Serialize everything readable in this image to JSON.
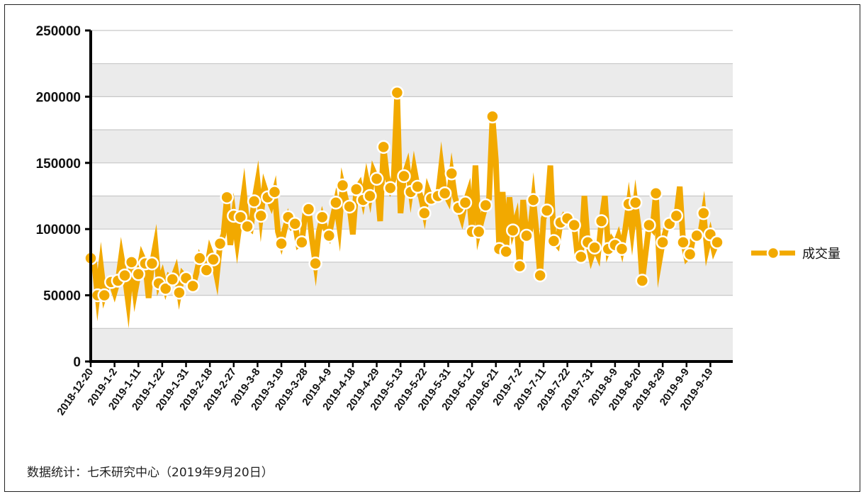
{
  "footnote": "数据统计：七禾研究中心（2019年9月20日）",
  "legend": {
    "label": "成交量"
  },
  "colors": {
    "series": "#F2A900",
    "band": "#EBEBEB",
    "gridline": "#C8C8C8",
    "axis": "#000000"
  },
  "chart_data": {
    "type": "line",
    "ylim": [
      0,
      250000
    ],
    "yticks": [
      0,
      50000,
      100000,
      150000,
      200000,
      250000
    ],
    "grid": true,
    "legend_position": "right",
    "xtick_labels": [
      "2018-12-20",
      "2019-1-2",
      "2019-1-11",
      "2019-1-22",
      "2019-1-31",
      "2019-2-18",
      "2019-2-27",
      "2019-3-8",
      "2019-3-19",
      "2019-3-28",
      "2019-4-9",
      "2019-4-18",
      "2019-4-29",
      "2019-5-13",
      "2019-5-22",
      "2019-5-31",
      "2019-6-12",
      "2019-6-21",
      "2019-7-2",
      "2019-7-11",
      "2019-7-22",
      "2019-7-31",
      "2019-8-9",
      "2019-8-20",
      "2019-8-29",
      "2019-9-9",
      "2019-9-19"
    ],
    "xtick_every": 7,
    "series": [
      {
        "name": "成交量",
        "marker_every": 2,
        "values": [
          78000,
          75000,
          50000,
          72000,
          50000,
          58000,
          60000,
          52000,
          61000,
          80000,
          65000,
          45000,
          75000,
          52000,
          66000,
          80000,
          74000,
          48000,
          74000,
          88000,
          59000,
          66000,
          55000,
          64000,
          62000,
          69000,
          52000,
          66000,
          63000,
          60000,
          57000,
          66000,
          78000,
          72000,
          69000,
          84000,
          77000,
          64000,
          89000,
          96000,
          124000,
          88000,
          110000,
          90000,
          109000,
          128000,
          102000,
          100000,
          121000,
          136000,
          110000,
          132000,
          124000,
          118000,
          128000,
          98000,
          89000,
          100000,
          109000,
          102000,
          104000,
          88000,
          90000,
          112000,
          115000,
          92000,
          74000,
          98000,
          109000,
          100000,
          95000,
          108000,
          120000,
          102000,
          133000,
          122000,
          117000,
          96000,
          130000,
          134000,
          122000,
          138000,
          125000,
          144000,
          138000,
          106000,
          162000,
          140000,
          131000,
          138000,
          203000,
          112000,
          140000,
          148000,
          128000,
          146000,
          132000,
          124000,
          112000,
          130000,
          123000,
          125000,
          125000,
          148000,
          127000,
          122000,
          142000,
          124000,
          116000,
          108000,
          120000,
          128000,
          98000,
          148000,
          98000,
          108000,
          118000,
          123000,
          185000,
          152000,
          85000,
          128000,
          83000,
          124000,
          99000,
          108000,
          72000,
          122000,
          95000,
          98000,
          122000,
          96000,
          65000,
          108000,
          114000,
          148000,
          91000,
          88000,
          105000,
          110000,
          108000,
          104000,
          103000,
          79000,
          79000,
          125000,
          90000,
          78000,
          86000,
          80000,
          106000,
          125000,
          85000,
          92000,
          88000,
          95000,
          85000,
          100000,
          119000,
          98000,
          120000,
          100000,
          61000,
          82000,
          103000,
          100000,
          127000,
          75000,
          90000,
          100000,
          104000,
          108000,
          110000,
          132000,
          90000,
          78000,
          81000,
          94000,
          95000,
          96000,
          112000,
          85000,
          96000,
          84000,
          90000
        ]
      }
    ]
  }
}
